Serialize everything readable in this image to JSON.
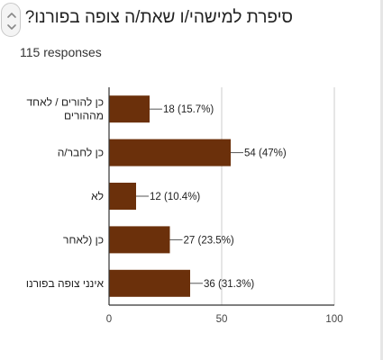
{
  "question": {
    "title": "סיפרת למישהי/ו שאת/ה צופה בפורנו?",
    "responses": "115 responses"
  },
  "icons": {
    "scroll": "scroll-up-down-icon"
  },
  "colors": {
    "bar": "#6b300b",
    "axis": "#333333",
    "grid": "#cccccc"
  },
  "chart_data": {
    "type": "bar",
    "orientation": "horizontal",
    "categories": [
      [
        "כן להורים / לאחד",
        "מההורים"
      ],
      [
        "כן לחבר/ה"
      ],
      [
        "לא"
      ],
      [
        "כן (לאחר"
      ],
      [
        "אינני צופה בפורנו"
      ]
    ],
    "values": [
      18,
      54,
      12,
      27,
      36
    ],
    "data_labels": [
      "18 (15.7%)",
      "54 (47%)",
      "12 (10.4%)",
      "27 (23.5%)",
      "36 (31.3%)"
    ],
    "xlim": [
      0,
      100
    ],
    "xticks": [
      0,
      50,
      100
    ],
    "grid": true
  }
}
